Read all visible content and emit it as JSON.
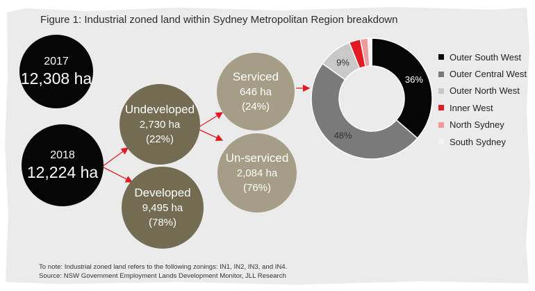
{
  "title": "Figure 1: Industrial zoned land within Sydney Metropolitan Region breakdown",
  "nodes": {
    "y2017": {
      "year": "2017",
      "value": "12,308 ha"
    },
    "y2018": {
      "year": "2018",
      "value": "12,224 ha"
    },
    "undeveloped": {
      "label": "Undeveloped",
      "value": "2,730 ha",
      "pct": "(22%)"
    },
    "developed": {
      "label": "Developed",
      "value": "9,495 ha",
      "pct": "(78%)"
    },
    "serviced": {
      "label": "Serviced",
      "value": "646 ha",
      "pct": "(24%)"
    },
    "unserviced": {
      "label": "Un-serviced",
      "value": "2,084 ha",
      "pct": "(76%)"
    }
  },
  "chart_data": {
    "type": "pie",
    "variant": "donut",
    "categories": [
      "Outer South West",
      "Outer Central West",
      "Outer North West",
      "Inner West",
      "North Sydney",
      "South Sydney"
    ],
    "values": [
      36,
      48,
      9,
      3,
      2,
      1
    ],
    "labels": [
      "36%",
      "48%",
      "9%",
      "",
      "",
      ""
    ],
    "colors": [
      "#050505",
      "#7a7a7a",
      "#c8c8c8",
      "#e11b22",
      "#f09a9c",
      "#f2f2f2"
    ],
    "legend_position": "right"
  },
  "footer": {
    "note": "To note: Industrial zoned land refers to the following zonings: IN1, IN2, IN3, and IN4.",
    "source": "Source: NSW Government Employment Lands Development Monitor, JLL Research"
  },
  "colors": {
    "background_panel": "#ebebeb",
    "arrow": "#e11b22",
    "olive": "#736b52",
    "tan": "#a59d85"
  }
}
